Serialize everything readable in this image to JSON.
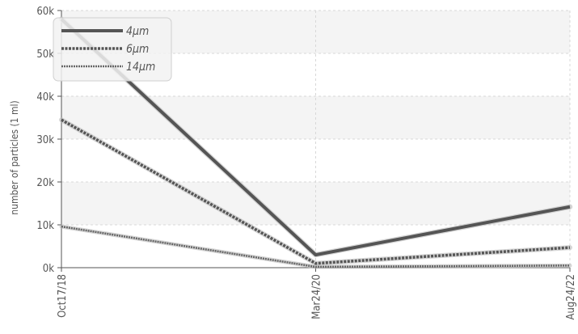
{
  "chart_data": {
    "type": "line",
    "title": "",
    "xlabel": "",
    "ylabel": "number of particles (1 ml)",
    "categories": [
      "Oct17/18",
      "Mar24/20",
      "Aug24/22"
    ],
    "ylim": [
      0,
      60000
    ],
    "yticks": [
      0,
      10000,
      20000,
      30000,
      40000,
      50000,
      60000
    ],
    "ytick_labels": [
      "0k",
      "10k",
      "20k",
      "30k",
      "40k",
      "50k",
      "60k"
    ],
    "series": [
      {
        "name": "4µm",
        "values": [
          58000,
          3000,
          14200
        ],
        "color": "#555555",
        "style": "solid"
      },
      {
        "name": "6µm",
        "values": [
          34500,
          1000,
          4700
        ],
        "color": "#555555",
        "style": "dashed"
      },
      {
        "name": "14µm",
        "values": [
          9600,
          200,
          500
        ],
        "color": "#666666",
        "style": "dotted"
      }
    ],
    "grid": true,
    "legend_position": "top-left"
  }
}
